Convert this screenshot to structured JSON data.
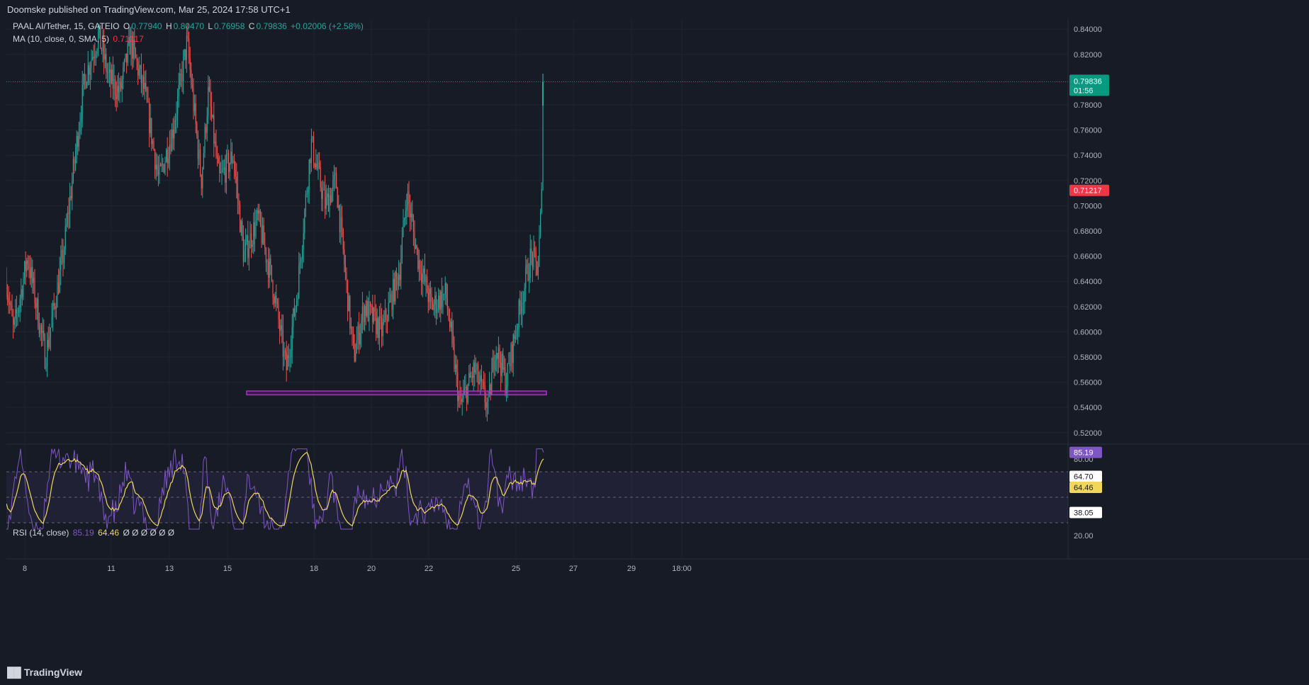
{
  "header": {
    "published_text": "Doomske published on TradingView.com, Mar 25, 2024 17:58 UTC+1"
  },
  "legend": {
    "symbol": "PAAL AI/Tether, 15, GATEIO",
    "o_label": "O",
    "o_value": "0.77940",
    "h_label": "H",
    "h_value": "0.80470",
    "l_label": "L",
    "l_value": "0.76958",
    "c_label": "C",
    "c_value": "0.79836",
    "change": "+0.02006 (+2.58%)",
    "ma_label": "MA (10, close, 0, SMA, 5)",
    "ma_value": "0.71217"
  },
  "rsi_legend": {
    "label": "RSI (14, close)",
    "value1": "85.19",
    "value2": "64.46",
    "extras": "Ø Ø Ø Ø Ø Ø"
  },
  "footer": {
    "brand": "TradingView"
  },
  "colors": {
    "background": "#171b26",
    "up": "#26a69a",
    "down": "#ef5350",
    "rect": "#b030c8",
    "rsi_line": "#7e57c2",
    "rsi_ma": "#f0d75a",
    "price_badge": "#089981",
    "ma_badge": "#f23645"
  },
  "chart_data": [
    {
      "type": "candlestick",
      "title": "PAAL AI/Tether, 15, GATEIO",
      "x_tick_labels": [
        "8",
        "11",
        "13",
        "15",
        "18",
        "20",
        "22",
        "25",
        "27",
        "29",
        "18:00"
      ],
      "y_tick_labels": [
        "0.84000",
        "0.82000",
        "0.78000",
        "0.76000",
        "0.74000",
        "0.72000",
        "0.70000",
        "0.68000",
        "0.66000",
        "0.64000",
        "0.62000",
        "0.60000",
        "0.58000",
        "0.56000",
        "0.54000",
        "0.52000"
      ],
      "ylim": [
        0.512,
        0.848
      ],
      "grid": true,
      "current_price": "0.79836",
      "countdown": "01:56",
      "ma_value_badge": "0.71217",
      "price_path": [
        [
          0,
          0.64
        ],
        [
          10,
          0.6
        ],
        [
          30,
          0.66
        ],
        [
          55,
          0.58
        ],
        [
          80,
          0.66
        ],
        [
          110,
          0.8
        ],
        [
          130,
          0.835
        ],
        [
          145,
          0.8
        ],
        [
          160,
          0.79
        ],
        [
          175,
          0.83
        ],
        [
          195,
          0.79
        ],
        [
          215,
          0.72
        ],
        [
          235,
          0.76
        ],
        [
          255,
          0.83
        ],
        [
          275,
          0.72
        ],
        [
          285,
          0.79
        ],
        [
          300,
          0.72
        ],
        [
          320,
          0.74
        ],
        [
          335,
          0.66
        ],
        [
          355,
          0.69
        ],
        [
          375,
          0.64
        ],
        [
          395,
          0.57
        ],
        [
          410,
          0.63
        ],
        [
          430,
          0.75
        ],
        [
          450,
          0.7
        ],
        [
          465,
          0.72
        ],
        [
          490,
          0.58
        ],
        [
          505,
          0.62
        ],
        [
          530,
          0.6
        ],
        [
          555,
          0.65
        ],
        [
          565,
          0.71
        ],
        [
          580,
          0.66
        ],
        [
          600,
          0.62
        ],
        [
          620,
          0.63
        ],
        [
          640,
          0.54
        ],
        [
          660,
          0.57
        ],
        [
          680,
          0.54
        ],
        [
          690,
          0.59
        ],
        [
          705,
          0.56
        ],
        [
          725,
          0.62
        ],
        [
          740,
          0.66
        ],
        [
          750,
          0.65
        ],
        [
          756,
          0.715
        ],
        [
          759,
          0.8
        ]
      ],
      "horizontal_zone": {
        "low": 0.55,
        "high": 0.553
      }
    },
    {
      "type": "line",
      "title": "RSI (14, close)",
      "y_tick_labels": [
        "80.00",
        "20.00"
      ],
      "ylim": [
        15,
        90
      ],
      "bands": [
        70,
        30
      ],
      "series": [
        {
          "name": "RSI",
          "color": "#7e57c2",
          "last": "85.19"
        },
        {
          "name": "",
          "color": "#f0d75a",
          "last": "64.46"
        }
      ],
      "right_axis_badges": [
        "85.19",
        "64.70",
        "64.46",
        "38.05"
      ]
    }
  ]
}
